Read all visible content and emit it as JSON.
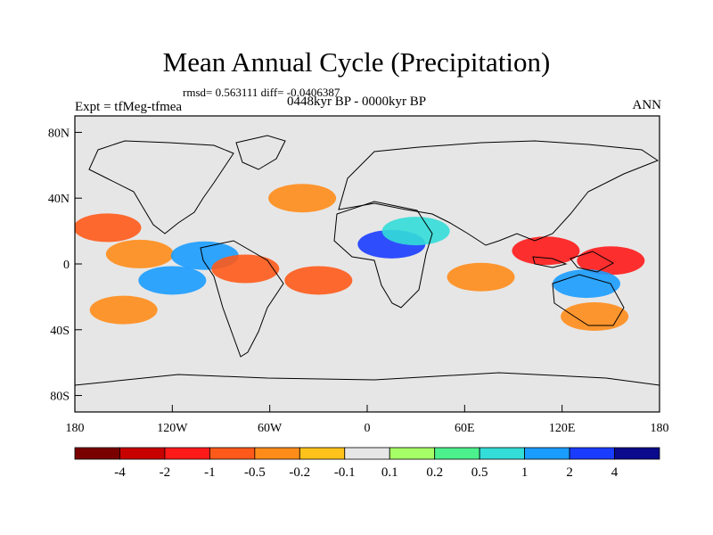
{
  "title": "Mean Annual Cycle (Precipitation)",
  "stats_line": "rmsd= 0.563111 diff= -0.0406387",
  "period_line": "0448kyr BP - 0000kyr BP",
  "experiment_label": "Expt = tfMeg-tfmea",
  "season_label": "ANN",
  "lat_ticks": [
    {
      "value": 80,
      "label": "80N"
    },
    {
      "value": 40,
      "label": "40N"
    },
    {
      "value": 0,
      "label": "0"
    },
    {
      "value": -40,
      "label": "40S"
    },
    {
      "value": -80,
      "label": "80S"
    }
  ],
  "lon_ticks": [
    {
      "value": -180,
      "label": "180"
    },
    {
      "value": -120,
      "label": "120W"
    },
    {
      "value": -60,
      "label": "60W"
    },
    {
      "value": 0,
      "label": "0"
    },
    {
      "value": 60,
      "label": "60E"
    },
    {
      "value": 120,
      "label": "120E"
    },
    {
      "value": 180,
      "label": "180"
    }
  ],
  "colorbar": {
    "colors": [
      "#7a0000",
      "#c80000",
      "#ff1a1a",
      "#ff5a1a",
      "#ff8c1a",
      "#ffc21a",
      "#e6e6e6",
      "#a6ff66",
      "#4cf08c",
      "#33ddd8",
      "#1a9cff",
      "#1a3cff",
      "#0a0a8c"
    ],
    "labels": [
      "-4",
      "-2",
      "-1",
      "-0.5",
      "-0.2",
      "-0.1",
      "0.1",
      "0.2",
      "0.5",
      "1",
      "2",
      "4"
    ]
  },
  "field_anomalies": [
    {
      "lon": -160,
      "lat": 22,
      "value": -0.6
    },
    {
      "lon": -140,
      "lat": 6,
      "value": -0.5
    },
    {
      "lon": -150,
      "lat": -28,
      "value": -0.5
    },
    {
      "lon": -120,
      "lat": -10,
      "value": 1.2
    },
    {
      "lon": -100,
      "lat": 5,
      "value": 1.5
    },
    {
      "lon": -75,
      "lat": -3,
      "value": -0.6
    },
    {
      "lon": -40,
      "lat": 40,
      "value": -0.5
    },
    {
      "lon": -30,
      "lat": -10,
      "value": -0.6
    },
    {
      "lon": 15,
      "lat": 12,
      "value": 2.0
    },
    {
      "lon": 30,
      "lat": 20,
      "value": 0.5
    },
    {
      "lon": 70,
      "lat": -8,
      "value": -0.5
    },
    {
      "lon": 110,
      "lat": 8,
      "value": -2.0
    },
    {
      "lon": 150,
      "lat": 2,
      "value": -2.0
    },
    {
      "lon": 135,
      "lat": -12,
      "value": 1.0
    },
    {
      "lon": 140,
      "lat": -32,
      "value": -0.4
    }
  ]
}
